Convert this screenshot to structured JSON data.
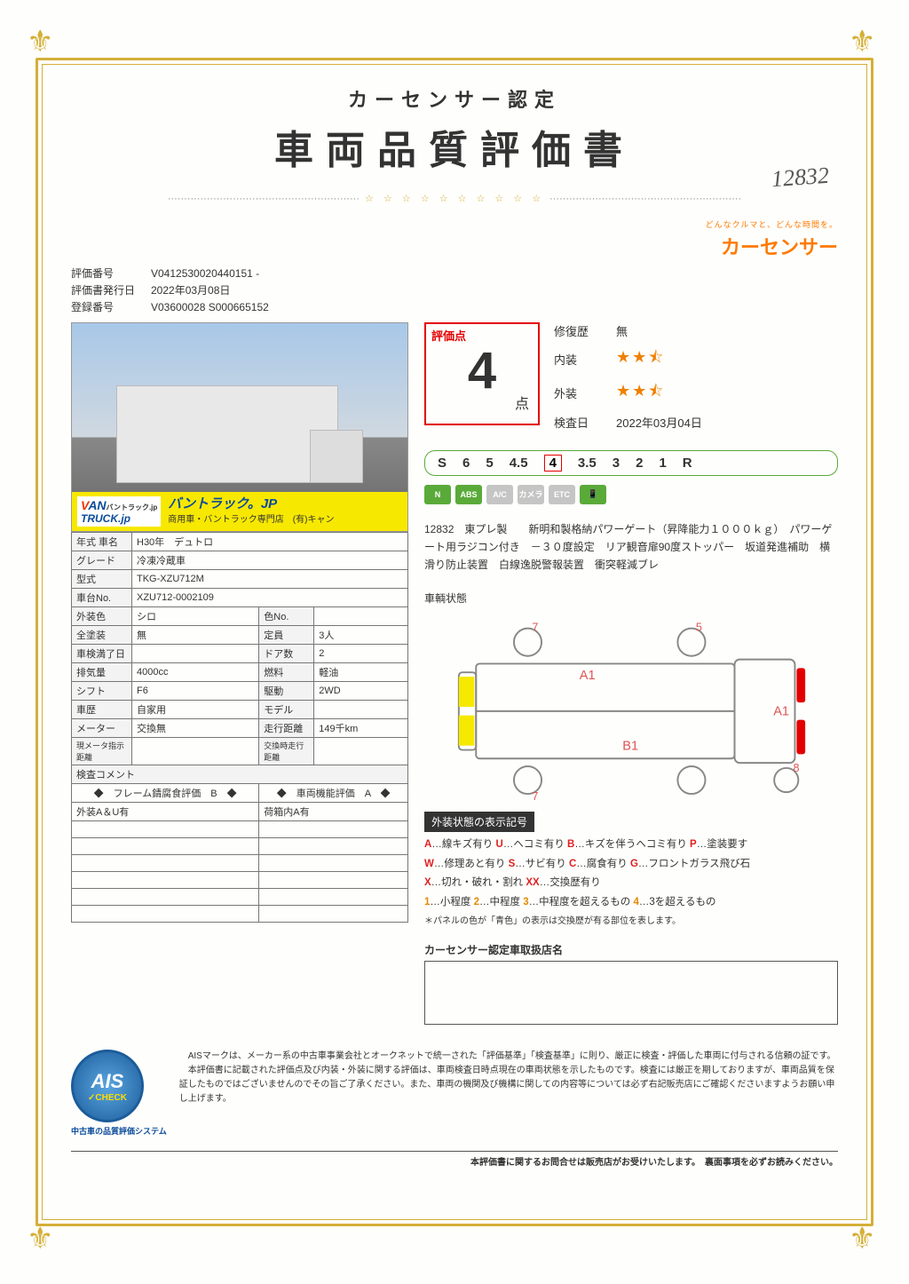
{
  "header": {
    "subtitle": "カーセンサー認定",
    "title": "車両品質評価書",
    "handwritten": "12832"
  },
  "brand": {
    "tagline": "どんなクルマと、どんな時間を。",
    "logo": "カーセンサー"
  },
  "meta": {
    "eval_no_label": "評価番号",
    "eval_no": "V0412530020440151 -",
    "issue_label": "評価書発行日",
    "issue_date": "2022年03月08日",
    "reg_label": "登録番号",
    "reg_no": "V03600028 S000665152"
  },
  "photo_banner": {
    "logo_v": "V",
    "logo_rest": "AN",
    "logo_line1": "バントラック.jp",
    "logo_line2": "TRUCK.jp",
    "main": "バントラック。JP",
    "sub": "商用車・バントラック専門店　(有)キャン"
  },
  "spec": {
    "year_label": "年式 車名",
    "year": "H30年　デュトロ",
    "grade_label": "グレード",
    "grade": "冷凍冷蔵車",
    "model_label": "型式",
    "model": "TKG-XZU712M",
    "chassis_label": "車台No.",
    "chassis": "XZU712-0002109",
    "color_label": "外装色",
    "color": "シロ",
    "colorno_label": "色No.",
    "colorno": "",
    "fullpaint_label": "全塗装",
    "fullpaint": "無",
    "capacity_label": "定員",
    "capacity": "3人",
    "inspect_label": "車検満了日",
    "inspect": "",
    "doors_label": "ドア数",
    "doors": "2",
    "disp_label": "排気量",
    "disp": "4000cc",
    "fuel_label": "燃料",
    "fuel": "軽油",
    "shift_label": "シフト",
    "shift": "F6",
    "drive_label": "駆動",
    "drive": "2WD",
    "hist_label": "車歴",
    "hist": "自家用",
    "modelr_label": "モデル",
    "modelr": "",
    "meter_label": "メーター",
    "meter": "交換無",
    "odo_label": "走行距離",
    "odo": "149千km",
    "cur_meter_label": "現メータ指示距離",
    "cur_meter": "",
    "swap_odo_label": "交換時走行距離",
    "swap_odo": "",
    "comment_label": "検査コメント",
    "frame_label": "◆　フレーム錆腐食評価　B　◆",
    "func_label": "◆　車両機能評価　A　◆",
    "ext_note": "外装A＆U有",
    "int_note": "荷箱内A有"
  },
  "score": {
    "label": "評価点",
    "value": "4",
    "unit": "点",
    "repair_label": "修復歴",
    "repair": "無",
    "interior_label": "内装",
    "interior_stars": 2.5,
    "exterior_label": "外装",
    "exterior_stars": 2.5,
    "inspect_date_label": "検査日",
    "inspect_date": "2022年03月04日"
  },
  "scale": {
    "items": [
      "S",
      "6",
      "5",
      "4.5",
      "4",
      "3.5",
      "3",
      "2",
      "1",
      "R"
    ],
    "current_index": 4
  },
  "features": [
    {
      "label": "N",
      "on": true
    },
    {
      "label": "ABS",
      "on": true
    },
    {
      "label": "A/C",
      "on": false
    },
    {
      "label": "カメラ",
      "on": false
    },
    {
      "label": "ETC",
      "on": false
    },
    {
      "label": "📱",
      "on": true
    }
  ],
  "description": "12832　東プレ製　　新明和製格納パワーゲート（昇降能力１０００ｋｇ）　パワーゲート用ラジコン付き　－３０度設定　リア観音扉90度ストッパー　坂道発進補助　横滑り防止装置　白線逸脱警報装置　衝突軽減ブレ",
  "diagram": {
    "title": "車輌状態",
    "marks": {
      "a1_top": "A1",
      "a1_right": "A1",
      "b1": "B1",
      "seven_l": "7",
      "five": "5",
      "seven_b": "7",
      "eight": "8"
    },
    "colors": {
      "outline": "#888",
      "yellow": "#f7e800",
      "red": "#e30000",
      "mark": "#d55"
    }
  },
  "legend": {
    "header": "外装状態の表示記号",
    "l1": {
      "a": "A",
      "at": "…線キズ有り",
      "u": "U",
      "ut": "…ヘコミ有り",
      "b": "B",
      "bt": "…キズを伴うヘコミ有り",
      "p": "P",
      "pt": "…塗装要す"
    },
    "l2": {
      "w": "W",
      "wt": "…修理あと有り",
      "s": "S",
      "st": "…サビ有り",
      "c": "C",
      "ct": "…腐食有り",
      "g": "G",
      "gt": "…フロントガラス飛び石"
    },
    "l3": {
      "x": "X",
      "xt": "…切れ・破れ・割れ",
      "xx": "XX",
      "xxt": "…交換歴有り"
    },
    "l4": {
      "n1": "1",
      "n1t": "…小程度",
      "n2": "2",
      "n2t": "…中程度",
      "n3": "3",
      "n3t": "…中程度を超えるもの",
      "n4": "4",
      "n4t": "…3を超えるもの"
    },
    "note": "＊パネルの色が「青色」の表示は交換歴が有る部位を表します。"
  },
  "dealer": {
    "title": "カーセンサー認定車取扱店名"
  },
  "ais": {
    "main": "AIS",
    "check": "✓CHECK",
    "caption": "中古車の品質評価システム",
    "text1": "　AISマークは、メーカー系の中古車事業会社とオークネットで統一された「評価基準」「検査基準」に則り、厳正に検査・評価した車両に付与される信頼の証です。",
    "text2": "　本評価書に記載された評価点及び内装・外装に関する評価は、車両検査日時点現在の車両状態を示したものです。検査には厳正を期しておりますが、車両品質を保証したものではございませんのでその旨ご了承ください。また、車両の機関及び機構に関しての内容等については必ず右記販売店にご確認くださいますようお願い申し上げます。"
  },
  "footer": "本評価書に関するお問合せは販売店がお受けいたします。　裏面事項を必ずお読みください。"
}
